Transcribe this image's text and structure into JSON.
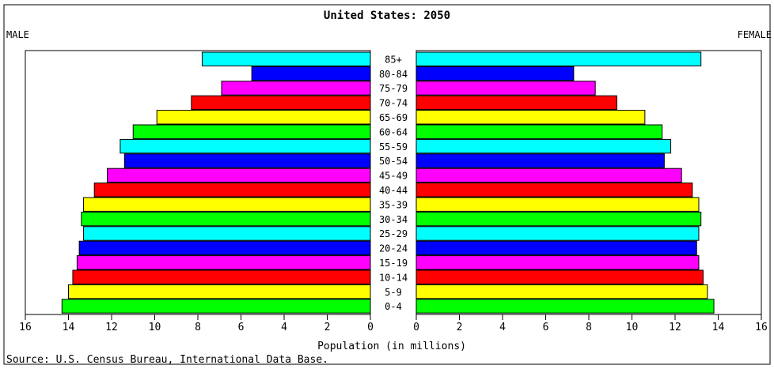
{
  "chart_data": {
    "type": "bar",
    "title": "United States: 2050",
    "left_label": "MALE",
    "right_label": "FEMALE",
    "xlabel": "Population (in millions)",
    "source": "Source: U.S. Census Bureau, International Data Base.",
    "xlim": [
      0,
      16
    ],
    "xticks": [
      0,
      2,
      4,
      6,
      8,
      10,
      12,
      14,
      16
    ],
    "categories": [
      "85+",
      "80-84",
      "75-79",
      "70-74",
      "65-69",
      "60-64",
      "55-59",
      "50-54",
      "45-49",
      "40-44",
      "35-39",
      "30-34",
      "25-29",
      "20-24",
      "15-19",
      "10-14",
      "5-9",
      "0-4"
    ],
    "series": [
      {
        "name": "MALE",
        "values": [
          7.8,
          5.5,
          6.9,
          8.3,
          9.9,
          11.0,
          11.6,
          11.4,
          12.2,
          12.8,
          13.3,
          13.4,
          13.3,
          13.5,
          13.6,
          13.8,
          14.0,
          14.3
        ]
      },
      {
        "name": "FEMALE",
        "values": [
          13.2,
          7.3,
          8.3,
          9.3,
          10.6,
          11.4,
          11.8,
          11.5,
          12.3,
          12.8,
          13.1,
          13.2,
          13.1,
          13.0,
          13.1,
          13.3,
          13.5,
          13.8
        ]
      }
    ],
    "bar_colors": [
      "#00ffff",
      "#0000ff",
      "#ff00ff",
      "#ff0000",
      "#ffff00",
      "#00ff00"
    ],
    "grid": false
  }
}
